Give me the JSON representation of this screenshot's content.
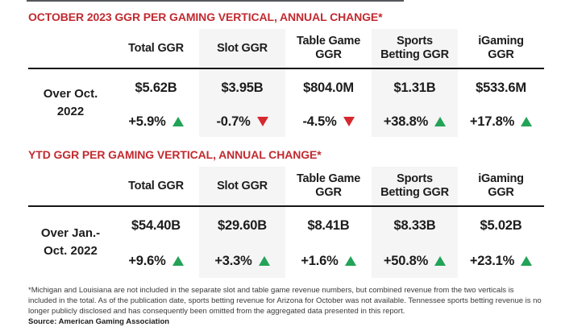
{
  "colors": {
    "title_red": "#c22a30",
    "up_green": "#22a357",
    "down_red": "#d7282f",
    "column_shade": "#f5f5f5"
  },
  "tables": [
    {
      "title": "OCTOBER 2023 GGR PER GAMING VERTICAL, ANNUAL CHANGE*",
      "row_label": "Over Oct.\n2022",
      "columns": [
        "Total GGR",
        "Slot GGR",
        "Table Game\nGGR",
        "Sports\nBetting GGR",
        "iGaming\nGGR"
      ],
      "values": [
        "$5.62B",
        "$3.95B",
        "$804.0M",
        "$1.31B",
        "$533.6M"
      ],
      "changes": [
        "+5.9%",
        "-0.7%",
        "-4.5%",
        "+38.8%",
        "+17.8%"
      ],
      "directions": [
        "up",
        "down",
        "down",
        "up",
        "up"
      ]
    },
    {
      "title": "YTD GGR PER GAMING VERTICAL, ANNUAL CHANGE*",
      "row_label": "Over Jan.-\nOct. 2022",
      "columns": [
        "Total GGR",
        "Slot GGR",
        "Table Game\nGGR",
        "Sports\nBetting GGR",
        "iGaming\nGGR"
      ],
      "values": [
        "$54.40B",
        "$29.60B",
        "$8.41B",
        "$8.33B",
        "$5.02B"
      ],
      "changes": [
        "+9.6%",
        "+3.3%",
        "+1.6%",
        "+50.8%",
        "+23.1%"
      ],
      "directions": [
        "up",
        "up",
        "up",
        "up",
        "up"
      ]
    }
  ],
  "footnote": "*Michigan and Louisiana are not included in the separate slot and table game revenue numbers, but combined revenue from the two verticals is included in the total. As of the publication date, sports betting revenue for Arizona for October was not available. Tennessee sports betting revenue is no longer publicly disclosed and has consequently been omitted from the aggregated data presented in this report.",
  "source": "Source: American Gaming Association",
  "chart_data": [
    {
      "type": "table",
      "title": "OCTOBER 2023 GGR PER GAMING VERTICAL, ANNUAL CHANGE*",
      "row_label": "Over Oct. 2022",
      "columns": [
        "Total GGR",
        "Slot GGR",
        "Table Game GGR",
        "Sports Betting GGR",
        "iGaming GGR"
      ],
      "ggr_values": [
        "$5.62B",
        "$3.95B",
        "$804.0M",
        "$1.31B",
        "$533.6M"
      ],
      "annual_change_pct": [
        5.9,
        -0.7,
        -4.5,
        38.8,
        17.8
      ]
    },
    {
      "type": "table",
      "title": "YTD GGR PER GAMING VERTICAL, ANNUAL CHANGE*",
      "row_label": "Over Jan.-Oct. 2022",
      "columns": [
        "Total GGR",
        "Slot GGR",
        "Table Game GGR",
        "Sports Betting GGR",
        "iGaming GGR"
      ],
      "ggr_values": [
        "$54.40B",
        "$29.60B",
        "$8.41B",
        "$8.33B",
        "$5.02B"
      ],
      "annual_change_pct": [
        9.6,
        3.3,
        1.6,
        50.8,
        23.1
      ]
    }
  ]
}
